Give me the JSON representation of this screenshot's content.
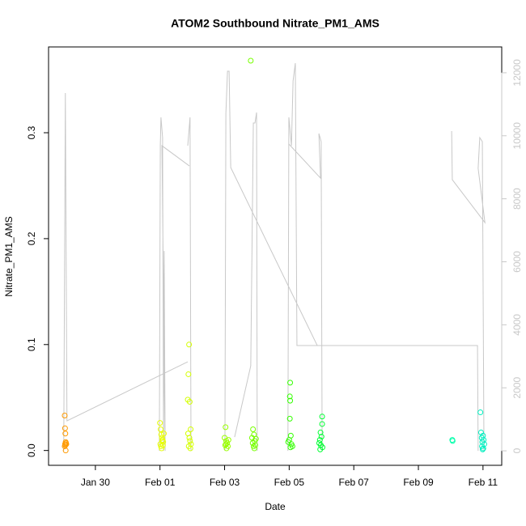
{
  "chart_data": {
    "type": "scatter",
    "title": "ATOM2 Southbound Nitrate_PM1_AMS",
    "xlabel": "Date",
    "ylabel": "Nitrate_PM1_AMS",
    "xlim": [
      28.55,
      42.58
    ],
    "xticks": [
      {
        "value": 30,
        "label": "Jan 30"
      },
      {
        "value": 32,
        "label": "Feb 01"
      },
      {
        "value": 34,
        "label": "Feb 03"
      },
      {
        "value": 36,
        "label": "Feb 05"
      },
      {
        "value": 38,
        "label": "Feb 07"
      },
      {
        "value": 40,
        "label": "Feb 09"
      },
      {
        "value": 42,
        "label": "Feb 11"
      }
    ],
    "ylim": [
      -0.014,
      0.381
    ],
    "yticks": [
      {
        "value": 0,
        "label": "0.0"
      },
      0.1,
      0.2,
      0.3
    ],
    "y2lim": [
      -460,
      12820
    ],
    "y2ticks": [
      0,
      2000,
      4000,
      6000,
      8000,
      10000,
      12000
    ],
    "y2color": "#c8c8c8",
    "series": [
      {
        "type": "line",
        "axis": "y2",
        "color": "#c8c8c8",
        "x": [
          29.02,
          29.07,
          29.12,
          32.86,
          null,
          31.98,
          32.01,
          32.03,
          32.08,
          32.11,
          32.13,
          32.16,
          32.06,
          32.91,
          null,
          32.86,
          32.93,
          32.96,
          null,
          34.01,
          34.04,
          34.09,
          34.14,
          34.19,
          36.87,
          null,
          34.31,
          34.81,
          34.86,
          34.89,
          34.94,
          34.99,
          35.01,
          null,
          35.96,
          35.99,
          36.07,
          36.12,
          36.19,
          36.24,
          41.83,
          41.85,
          null,
          35.99,
          36.97,
          36.92,
          36.99,
          37.02,
          null,
          41.03,
          41.05,
          42.06,
          41.85,
          41.9,
          41.98,
          42.03
        ],
        "values": [
          0,
          11355,
          950,
          2826,
          null,
          0,
          9685,
          10584,
          9942,
          0,
          6345,
          0,
          9685,
          9043,
          null,
          9685,
          10584,
          0,
          null,
          0,
          10713,
          12049,
          12049,
          8992,
          3340,
          null,
          437,
          2697,
          7501,
          10404,
          10404,
          10738,
          0,
          null,
          0,
          10584,
          9685,
          11740,
          12306,
          3340,
          3340,
          0,
          null,
          9737,
          8658,
          10070,
          9814,
          0,
          null,
          10148,
          8606,
          7245,
          8966,
          9942,
          9814,
          0
        ]
      },
      {
        "type": "scatter",
        "color": "#ff9a00",
        "x": [
          29.05,
          29.06,
          29.07,
          29.08,
          29.06,
          29.07,
          29.09,
          29.05,
          29.08,
          29.1
        ],
        "values": [
          0.033,
          0.021,
          0.016,
          0.008,
          0.006,
          0.005,
          0.007,
          0.004,
          0.0,
          0.006
        ]
      },
      {
        "type": "scatter",
        "color": "#e8ff00",
        "x": [
          32.0,
          32.02,
          32.04,
          32.06,
          32.08,
          32.1,
          32.01,
          32.03,
          32.05,
          32.12,
          32.07,
          32.09
        ],
        "values": [
          0.026,
          0.02,
          0.015,
          0.012,
          0.01,
          0.008,
          0.006,
          0.004,
          0.002,
          0.016,
          0.009,
          0.005
        ]
      },
      {
        "type": "scatter",
        "color": "#d4ff00",
        "x": [
          32.9,
          32.88,
          32.86,
          32.92,
          32.95,
          32.87,
          32.91,
          32.93,
          32.96,
          32.89,
          32.94
        ],
        "values": [
          0.1,
          0.072,
          0.048,
          0.046,
          0.02,
          0.016,
          0.012,
          0.009,
          0.006,
          0.004,
          0.002
        ]
      },
      {
        "type": "scatter",
        "color": "#99ff00",
        "x": [
          34.03,
          34.0,
          34.05,
          34.08,
          34.02,
          34.1,
          34.06,
          34.12,
          34.04
        ],
        "values": [
          0.022,
          0.012,
          0.009,
          0.007,
          0.005,
          0.004,
          0.002,
          0.01,
          0.006
        ]
      },
      {
        "type": "scatter",
        "color": "#77ff00",
        "x": [
          34.81,
          34.88,
          34.91,
          34.85,
          34.93,
          34.87,
          34.95,
          34.9,
          34.92,
          34.97
        ],
        "values": [
          0.368,
          0.02,
          0.015,
          0.012,
          0.009,
          0.007,
          0.005,
          0.004,
          0.002,
          0.011
        ]
      },
      {
        "type": "scatter",
        "color": "#33ff00",
        "x": [
          36.03,
          36.02,
          36.03,
          36.02,
          36.05,
          36.0,
          35.97,
          36.07,
          36.1,
          36.04
        ],
        "values": [
          0.064,
          0.051,
          0.047,
          0.03,
          0.014,
          0.01,
          0.008,
          0.006,
          0.004,
          0.003
        ]
      },
      {
        "type": "scatter",
        "color": "#00ff33",
        "x": [
          37.02,
          37.02,
          36.97,
          37.0,
          36.95,
          36.93,
          36.98,
          37.03,
          36.96
        ],
        "values": [
          0.032,
          0.025,
          0.017,
          0.013,
          0.01,
          0.007,
          0.005,
          0.003,
          0.001
        ]
      },
      {
        "type": "scatter",
        "color": "#00ffaa",
        "x": [
          41.05,
          41.06
        ],
        "values": [
          0.01,
          0.009
        ]
      },
      {
        "type": "scatter",
        "color": "#00f0c0",
        "x": [
          41.92,
          41.94,
          42.0,
          41.96,
          42.02,
          41.98,
          42.04,
          41.97,
          42.01,
          41.99
        ],
        "values": [
          0.036,
          0.017,
          0.014,
          0.012,
          0.01,
          0.008,
          0.006,
          0.004,
          0.002,
          0.001
        ]
      }
    ]
  }
}
